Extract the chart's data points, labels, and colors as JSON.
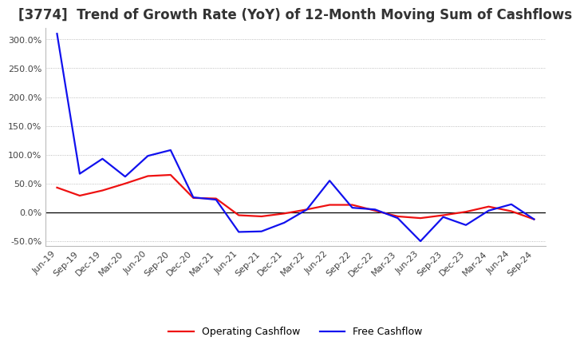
{
  "title": "[3774]  Trend of Growth Rate (YoY) of 12-Month Moving Sum of Cashflows",
  "title_fontsize": 12,
  "background_color": "#ffffff",
  "grid_color": "#aaaaaa",
  "x_labels": [
    "Jun-19",
    "Sep-19",
    "Dec-19",
    "Mar-20",
    "Jun-20",
    "Sep-20",
    "Dec-20",
    "Mar-21",
    "Jun-21",
    "Sep-21",
    "Dec-21",
    "Mar-22",
    "Jun-22",
    "Sep-22",
    "Dec-22",
    "Mar-23",
    "Jun-23",
    "Sep-23",
    "Dec-23",
    "Mar-24",
    "Jun-24",
    "Sep-24"
  ],
  "operating_cashflow": [
    0.43,
    0.29,
    0.38,
    0.5,
    0.63,
    0.65,
    0.25,
    0.24,
    -0.05,
    -0.07,
    -0.02,
    0.05,
    0.13,
    0.13,
    0.03,
    -0.07,
    -0.1,
    -0.05,
    0.01,
    0.1,
    0.02,
    -0.12
  ],
  "free_cashflow": [
    3.1,
    0.67,
    0.93,
    0.62,
    0.98,
    1.08,
    0.26,
    0.22,
    -0.34,
    -0.33,
    -0.18,
    0.05,
    0.55,
    0.08,
    0.05,
    -0.1,
    -0.5,
    -0.08,
    -0.22,
    0.03,
    0.14,
    -0.12
  ],
  "operating_color": "#ee1111",
  "free_color": "#1111ee",
  "legend_labels": [
    "Operating Cashflow",
    "Free Cashflow"
  ],
  "linewidth": 1.6,
  "yticks": [
    -0.5,
    0.0,
    0.5,
    1.0,
    1.5,
    2.0,
    2.5,
    3.0
  ],
  "ylim_min": -0.58,
  "ylim_max": 3.2
}
